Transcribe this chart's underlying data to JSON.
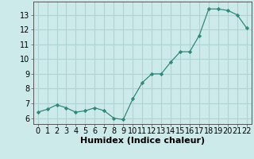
{
  "x": [
    0,
    1,
    2,
    3,
    4,
    5,
    6,
    7,
    8,
    9,
    10,
    11,
    12,
    13,
    14,
    15,
    16,
    17,
    18,
    19,
    20,
    21,
    22
  ],
  "y": [
    6.4,
    6.6,
    6.9,
    6.7,
    6.4,
    6.5,
    6.7,
    6.5,
    6.0,
    5.9,
    7.3,
    8.4,
    9.0,
    9.0,
    9.8,
    10.5,
    10.5,
    11.6,
    13.4,
    13.4,
    13.3,
    13.0,
    12.1
  ],
  "line_color": "#2d8a7a",
  "marker": "D",
  "marker_size": 2.2,
  "bg_color": "#cdeaea",
  "grid_color": "#aed4d4",
  "xlabel": "Humidex (Indice chaleur)",
  "xlabel_fontsize": 8,
  "ylabel_ticks": [
    6,
    7,
    8,
    9,
    10,
    11,
    12,
    13
  ],
  "xtick_labels": [
    "0",
    "1",
    "2",
    "3",
    "4",
    "5",
    "6",
    "7",
    "8",
    "9",
    "10",
    "11",
    "12",
    "13",
    "14",
    "15",
    "16",
    "17",
    "18",
    "19",
    "20",
    "21",
    "22"
  ],
  "ylim": [
    5.6,
    13.9
  ],
  "xlim": [
    -0.5,
    22.5
  ],
  "tick_fontsize": 7,
  "linewidth": 0.9
}
